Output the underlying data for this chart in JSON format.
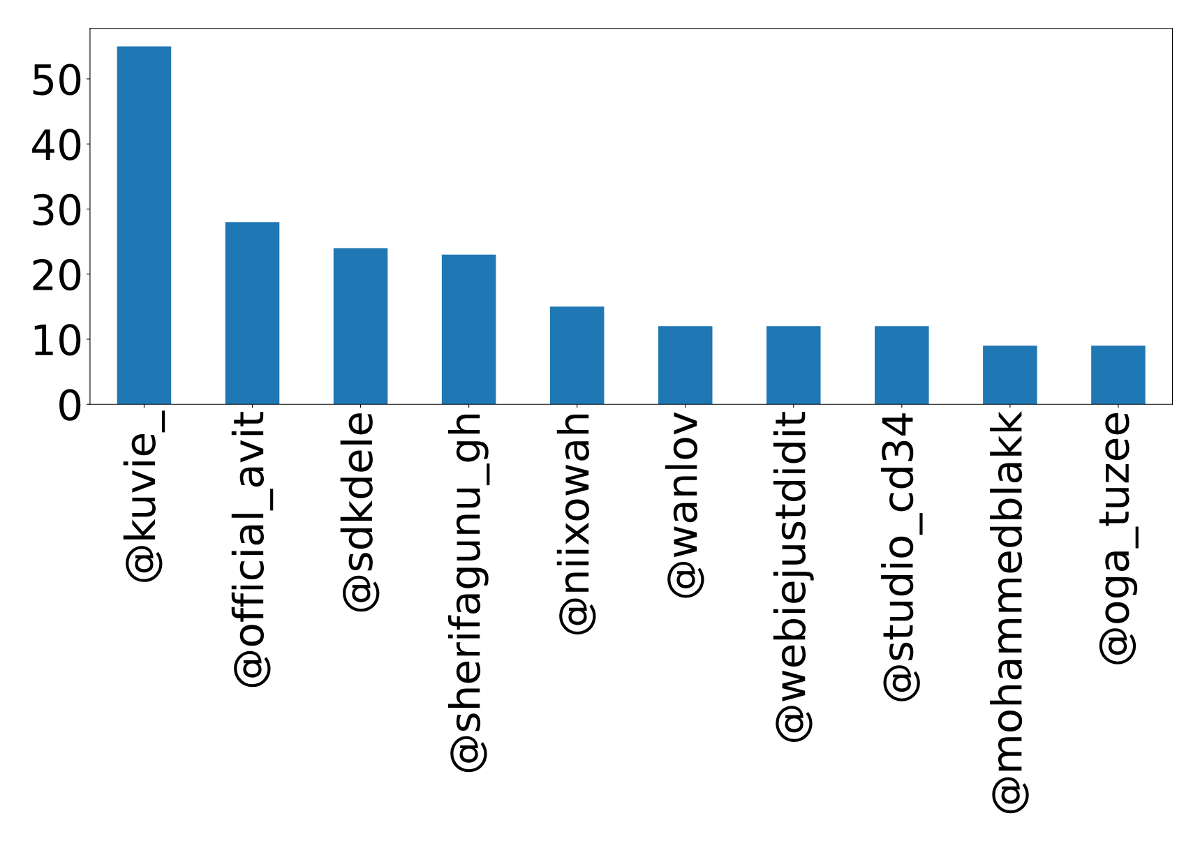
{
  "chart_data": {
    "type": "bar",
    "categories": [
      "@kuvie_",
      "@official_avit",
      "@sdkdele",
      "@sherifagunu_gh",
      "@niixowah",
      "@wanlov",
      "@webiejustdidit",
      "@studio_cd34",
      "@mohammedblakk",
      "@oga_tuzee"
    ],
    "values": [
      55,
      28,
      24,
      23,
      15,
      12,
      12,
      12,
      9,
      9
    ],
    "color": "#1f77b4",
    "ylim": [
      0,
      57.75
    ],
    "yticks": [
      0,
      10,
      20,
      30,
      40,
      50
    ],
    "grid": false,
    "legend": false
  }
}
